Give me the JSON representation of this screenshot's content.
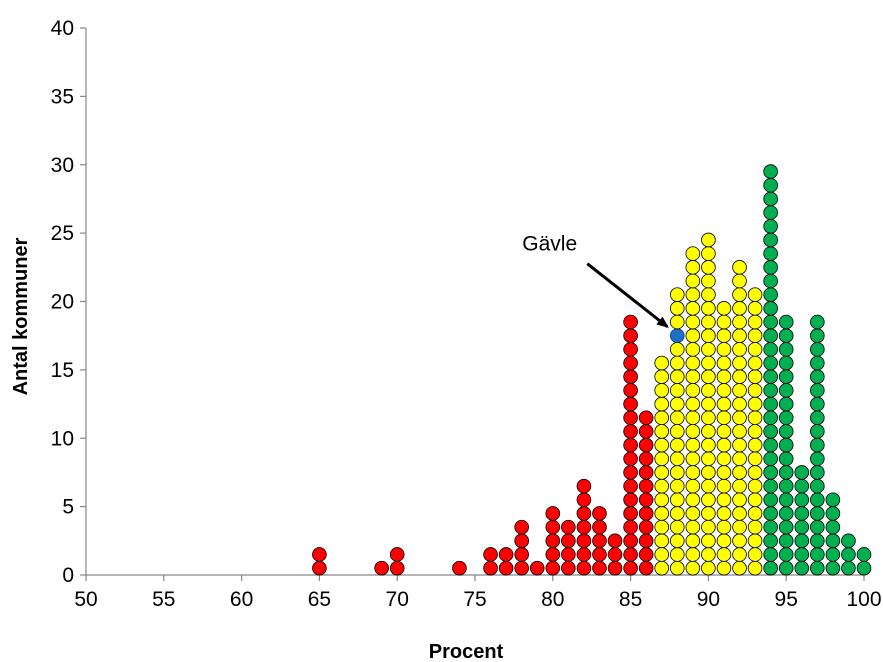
{
  "chart_data": {
    "type": "scatter",
    "title": "",
    "xlabel": "Procent",
    "ylabel": "Antal kommuner",
    "xlim": [
      50,
      100
    ],
    "ylim": [
      0,
      40
    ],
    "x_ticks": [
      50,
      55,
      60,
      65,
      70,
      75,
      80,
      85,
      90,
      95,
      100
    ],
    "y_ticks": [
      0,
      5,
      10,
      15,
      20,
      25,
      30,
      35,
      40
    ],
    "grid": false,
    "legend": "none",
    "colors": {
      "red": "#ff0000",
      "yellow": "#ffff00",
      "green": "#00b050",
      "highlight": "#1f6fc5"
    },
    "stacks": [
      {
        "x": 65,
        "count": 2,
        "color": "red"
      },
      {
        "x": 69,
        "count": 1,
        "color": "red"
      },
      {
        "x": 70,
        "count": 2,
        "color": "red"
      },
      {
        "x": 74,
        "count": 1,
        "color": "red"
      },
      {
        "x": 76,
        "count": 2,
        "color": "red"
      },
      {
        "x": 77,
        "count": 2,
        "color": "red"
      },
      {
        "x": 78,
        "count": 4,
        "color": "red"
      },
      {
        "x": 79,
        "count": 1,
        "color": "red"
      },
      {
        "x": 80,
        "count": 5,
        "color": "red"
      },
      {
        "x": 81,
        "count": 4,
        "color": "red"
      },
      {
        "x": 82,
        "count": 7,
        "color": "red"
      },
      {
        "x": 83,
        "count": 5,
        "color": "red"
      },
      {
        "x": 84,
        "count": 3,
        "color": "red"
      },
      {
        "x": 85,
        "count": 19,
        "color": "red"
      },
      {
        "x": 86,
        "count": 12,
        "color": "red"
      },
      {
        "x": 87,
        "count": 16,
        "color": "yellow"
      },
      {
        "x": 88,
        "count": 21,
        "color": "yellow"
      },
      {
        "x": 89,
        "count": 24,
        "color": "yellow"
      },
      {
        "x": 90,
        "count": 25,
        "color": "yellow"
      },
      {
        "x": 91,
        "count": 20,
        "color": "yellow"
      },
      {
        "x": 92,
        "count": 23,
        "color": "yellow"
      },
      {
        "x": 93,
        "count": 21,
        "color": "yellow"
      },
      {
        "x": 94,
        "count": 30,
        "color": "green"
      },
      {
        "x": 95,
        "count": 19,
        "color": "green"
      },
      {
        "x": 96,
        "count": 8,
        "color": "green"
      },
      {
        "x": 97,
        "count": 19,
        "color": "green"
      },
      {
        "x": 98,
        "count": 6,
        "color": "green"
      },
      {
        "x": 99,
        "count": 3,
        "color": "green"
      },
      {
        "x": 100,
        "count": 2,
        "color": "green"
      }
    ],
    "highlight": {
      "x": 88,
      "y": 18,
      "label": "Gävle",
      "color": "highlight"
    },
    "annotations": [
      {
        "text": "Gävle",
        "points_to": {
          "x": 88,
          "y": 18
        }
      }
    ]
  }
}
